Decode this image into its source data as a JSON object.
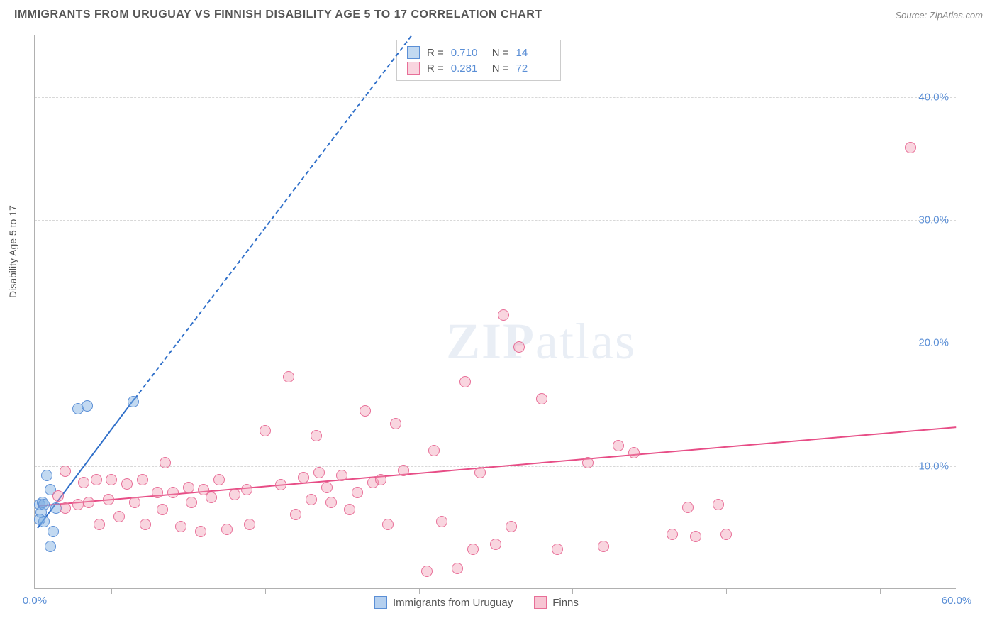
{
  "header": {
    "title": "IMMIGRANTS FROM URUGUAY VS FINNISH DISABILITY AGE 5 TO 17 CORRELATION CHART",
    "source": "Source: ZipAtlas.com"
  },
  "chart": {
    "type": "scatter",
    "y_axis_label": "Disability Age 5 to 17",
    "background_color": "#ffffff",
    "grid_color": "#d8d8d8",
    "axis_color": "#b0b0b0",
    "tick_label_color": "#5b8fd6",
    "label_fontsize": 14,
    "tick_fontsize": 15,
    "xlim": [
      0,
      60
    ],
    "ylim": [
      0,
      45
    ],
    "x_tick_positions": [
      0,
      5,
      10,
      15,
      20,
      25,
      30,
      35,
      40,
      45,
      50,
      55,
      60
    ],
    "x_tick_labels": {
      "0": "0.0%",
      "60": "60.0%"
    },
    "y_gridlines": [
      10,
      20,
      30,
      40
    ],
    "y_tick_labels": {
      "10": "10.0%",
      "20": "20.0%",
      "30": "30.0%",
      "40": "40.0%"
    },
    "watermark": "ZIPatlas",
    "series": [
      {
        "name": "Immigrants from Uruguay",
        "marker_color_fill": "rgba(120,170,225,0.45)",
        "marker_color_stroke": "#5b8fd6",
        "trend_color": "#2f6fc9",
        "trend_solid": {
          "x1": 0.2,
          "y1": 5.0,
          "x2": 6.5,
          "y2": 15.5
        },
        "trend_dash": {
          "x1": 6.5,
          "y1": 15.5,
          "x2": 24.5,
          "y2": 45.0
        },
        "r": "0.710",
        "n": "14",
        "points": [
          {
            "x": 0.3,
            "y": 6.8
          },
          {
            "x": 0.5,
            "y": 7.0
          },
          {
            "x": 0.4,
            "y": 6.2
          },
          {
            "x": 0.8,
            "y": 9.2
          },
          {
            "x": 1.0,
            "y": 8.0
          },
          {
            "x": 0.6,
            "y": 5.4
          },
          {
            "x": 1.2,
            "y": 4.6
          },
          {
            "x": 1.0,
            "y": 3.4
          },
          {
            "x": 0.6,
            "y": 6.8
          },
          {
            "x": 1.4,
            "y": 6.5
          },
          {
            "x": 2.8,
            "y": 14.6
          },
          {
            "x": 3.4,
            "y": 14.8
          },
          {
            "x": 6.4,
            "y": 15.2
          },
          {
            "x": 0.3,
            "y": 5.6
          }
        ]
      },
      {
        "name": "Finns",
        "marker_color_fill": "rgba(240,150,175,0.40)",
        "marker_color_stroke": "#e86f98",
        "trend_color": "#e74d86",
        "trend_solid": {
          "x1": 0.2,
          "y1": 6.8,
          "x2": 60.0,
          "y2": 13.2
        },
        "r": "0.281",
        "n": "72",
        "points": [
          {
            "x": 1.5,
            "y": 7.5
          },
          {
            "x": 2.0,
            "y": 9.5
          },
          {
            "x": 2.0,
            "y": 6.5
          },
          {
            "x": 2.8,
            "y": 6.8
          },
          {
            "x": 3.2,
            "y": 8.6
          },
          {
            "x": 3.5,
            "y": 7.0
          },
          {
            "x": 4.0,
            "y": 8.8
          },
          {
            "x": 4.2,
            "y": 5.2
          },
          {
            "x": 4.8,
            "y": 7.2
          },
          {
            "x": 5.0,
            "y": 8.8
          },
          {
            "x": 5.5,
            "y": 5.8
          },
          {
            "x": 6.0,
            "y": 8.5
          },
          {
            "x": 6.5,
            "y": 7.0
          },
          {
            "x": 7.0,
            "y": 8.8
          },
          {
            "x": 7.2,
            "y": 5.2
          },
          {
            "x": 8.0,
            "y": 7.8
          },
          {
            "x": 8.3,
            "y": 6.4
          },
          {
            "x": 8.5,
            "y": 10.2
          },
          {
            "x": 9.0,
            "y": 7.8
          },
          {
            "x": 9.5,
            "y": 5.0
          },
          {
            "x": 10.0,
            "y": 8.2
          },
          {
            "x": 10.2,
            "y": 7.0
          },
          {
            "x": 10.8,
            "y": 4.6
          },
          {
            "x": 11.0,
            "y": 8.0
          },
          {
            "x": 11.5,
            "y": 7.4
          },
          {
            "x": 12.0,
            "y": 8.8
          },
          {
            "x": 12.5,
            "y": 4.8
          },
          {
            "x": 13.0,
            "y": 7.6
          },
          {
            "x": 13.8,
            "y": 8.0
          },
          {
            "x": 14.0,
            "y": 5.2
          },
          {
            "x": 15.0,
            "y": 12.8
          },
          {
            "x": 16.5,
            "y": 17.2
          },
          {
            "x": 16.0,
            "y": 8.4
          },
          {
            "x": 17.0,
            "y": 6.0
          },
          {
            "x": 17.5,
            "y": 9.0
          },
          {
            "x": 18.0,
            "y": 7.2
          },
          {
            "x": 18.3,
            "y": 12.4
          },
          {
            "x": 18.5,
            "y": 9.4
          },
          {
            "x": 19.0,
            "y": 8.2
          },
          {
            "x": 19.3,
            "y": 7.0
          },
          {
            "x": 20.0,
            "y": 9.2
          },
          {
            "x": 20.5,
            "y": 6.4
          },
          {
            "x": 21.0,
            "y": 7.8
          },
          {
            "x": 21.5,
            "y": 14.4
          },
          {
            "x": 22.0,
            "y": 8.6
          },
          {
            "x": 22.5,
            "y": 8.8
          },
          {
            "x": 23.0,
            "y": 5.2
          },
          {
            "x": 23.5,
            "y": 13.4
          },
          {
            "x": 24.0,
            "y": 9.6
          },
          {
            "x": 25.5,
            "y": 1.4
          },
          {
            "x": 26.0,
            "y": 11.2
          },
          {
            "x": 26.5,
            "y": 5.4
          },
          {
            "x": 27.5,
            "y": 1.6
          },
          {
            "x": 28.0,
            "y": 16.8
          },
          {
            "x": 28.5,
            "y": 3.2
          },
          {
            "x": 29.0,
            "y": 9.4
          },
          {
            "x": 30.0,
            "y": 3.6
          },
          {
            "x": 30.5,
            "y": 22.2
          },
          {
            "x": 31.0,
            "y": 5.0
          },
          {
            "x": 31.5,
            "y": 19.6
          },
          {
            "x": 33.0,
            "y": 15.4
          },
          {
            "x": 34.0,
            "y": 3.2
          },
          {
            "x": 36.0,
            "y": 10.2
          },
          {
            "x": 37.0,
            "y": 3.4
          },
          {
            "x": 38.0,
            "y": 11.6
          },
          {
            "x": 39.0,
            "y": 11.0
          },
          {
            "x": 41.5,
            "y": 4.4
          },
          {
            "x": 42.5,
            "y": 6.6
          },
          {
            "x": 43.0,
            "y": 4.2
          },
          {
            "x": 44.5,
            "y": 6.8
          },
          {
            "x": 45.0,
            "y": 4.4
          },
          {
            "x": 57.0,
            "y": 35.8
          }
        ]
      }
    ],
    "stats_box_labels": {
      "r": "R =",
      "n": "N ="
    },
    "bottom_legend": [
      {
        "label": "Immigrants from Uruguay",
        "fill": "rgba(120,170,225,0.55)",
        "stroke": "#5b8fd6"
      },
      {
        "label": "Finns",
        "fill": "rgba(240,150,175,0.55)",
        "stroke": "#e86f98"
      }
    ]
  }
}
